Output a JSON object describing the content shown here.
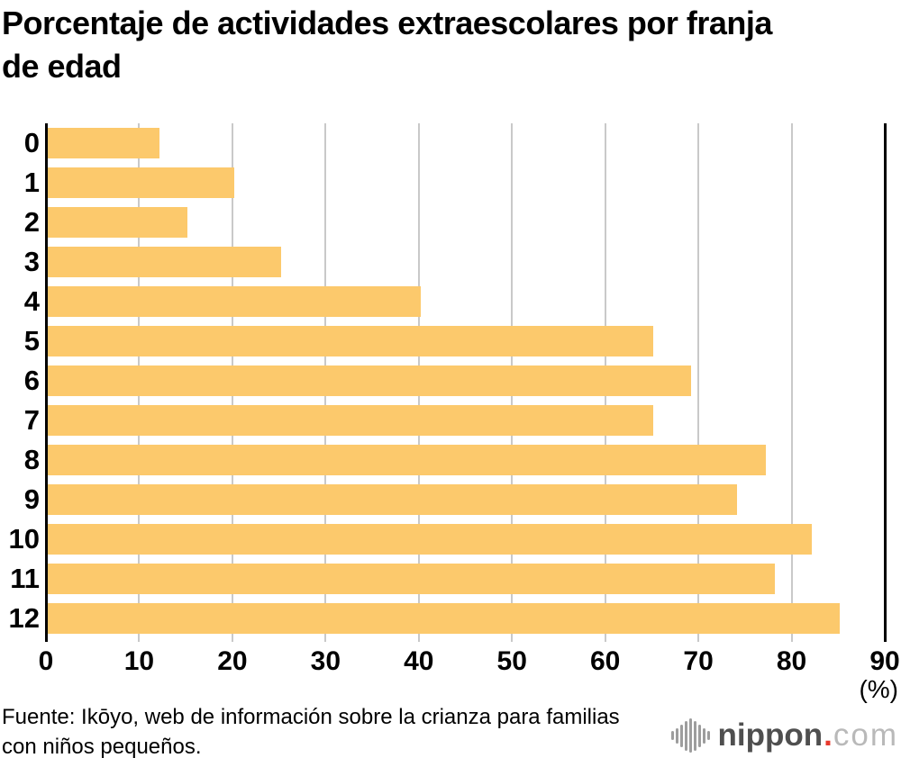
{
  "title": "Porcentaje de actividades extraescolares por franja de edad",
  "title_lines": [
    "Porcentaje de actividades extraescolares por franja",
    "de edad"
  ],
  "chart_data": {
    "type": "bar",
    "orientation": "horizontal",
    "title": "Porcentaje de actividades extraescolares por franja de edad",
    "categories": [
      "0",
      "1",
      "2",
      "3",
      "4",
      "5",
      "6",
      "7",
      "8",
      "9",
      "10",
      "11",
      "12"
    ],
    "values": [
      12,
      20,
      15,
      25,
      40,
      65,
      69,
      65,
      77,
      74,
      82,
      78,
      85
    ],
    "x_ticks": [
      0,
      10,
      20,
      30,
      40,
      50,
      60,
      70,
      80,
      90
    ],
    "xlim": [
      0,
      90
    ],
    "unit_label": "(%)",
    "grid": true,
    "legend": false
  },
  "footer": {
    "lines": [
      "Fuente: Ikōyo, web de información sobre la crianza para familias",
      "con niños pequeños."
    ]
  },
  "logo": {
    "brand": "nippon",
    "dot": ".",
    "tld": "com"
  },
  "colors": {
    "bar": "#fcc96c",
    "grid": "#c9c9c9",
    "axis": "#000000",
    "logo_text": "#4f4f4f",
    "logo_dot": "#e8392d",
    "logo_tld": "#b9b9b9",
    "logo_icon": "#9d9d9d"
  }
}
